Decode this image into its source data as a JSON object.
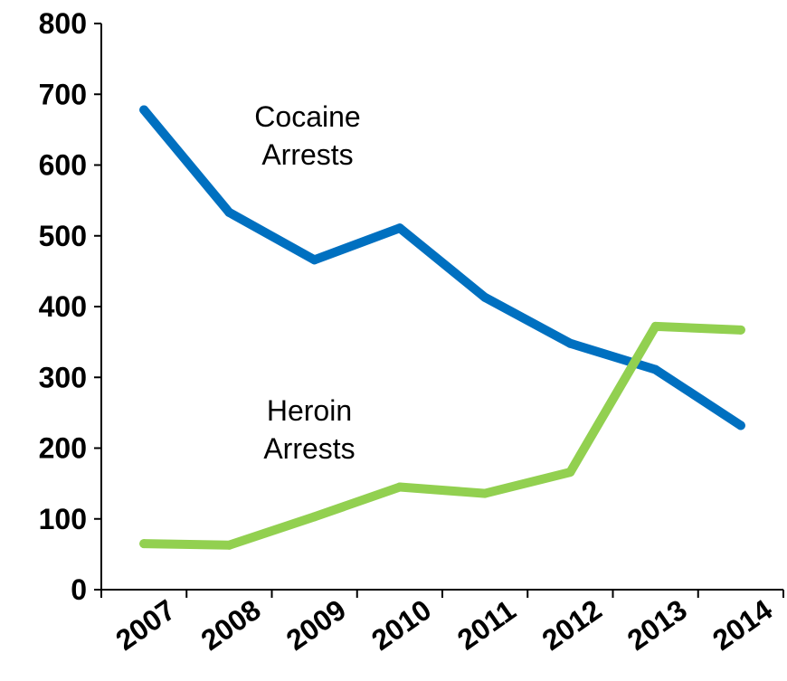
{
  "chart_data": {
    "type": "line",
    "title": "",
    "xlabel": "",
    "ylabel": "",
    "categories": [
      "2007",
      "2008",
      "2009",
      "2010",
      "2011",
      "2012",
      "2013",
      "2014"
    ],
    "series": [
      {
        "key": "cocaine",
        "color": "#0070C0",
        "values": [
          678,
          533,
          466,
          511,
          413,
          348,
          311,
          232
        ]
      },
      {
        "key": "heroin",
        "color": "#92D050",
        "values": [
          65,
          63,
          103,
          145,
          136,
          166,
          372,
          367
        ]
      }
    ],
    "y_ticks": [
      0,
      100,
      200,
      300,
      400,
      500,
      600,
      700,
      800
    ],
    "y_tick_labels": [
      "0",
      "100",
      "200",
      "300",
      "400",
      "500",
      "600",
      "700",
      "800"
    ],
    "ylim": [
      0,
      800
    ],
    "grid": false,
    "legend": "none",
    "annotations": [
      {
        "series": "cocaine",
        "lines": [
          "Cocaine",
          "Arrests"
        ]
      },
      {
        "series": "heroin",
        "lines": [
          "Heroin",
          "Arrests"
        ]
      }
    ]
  }
}
